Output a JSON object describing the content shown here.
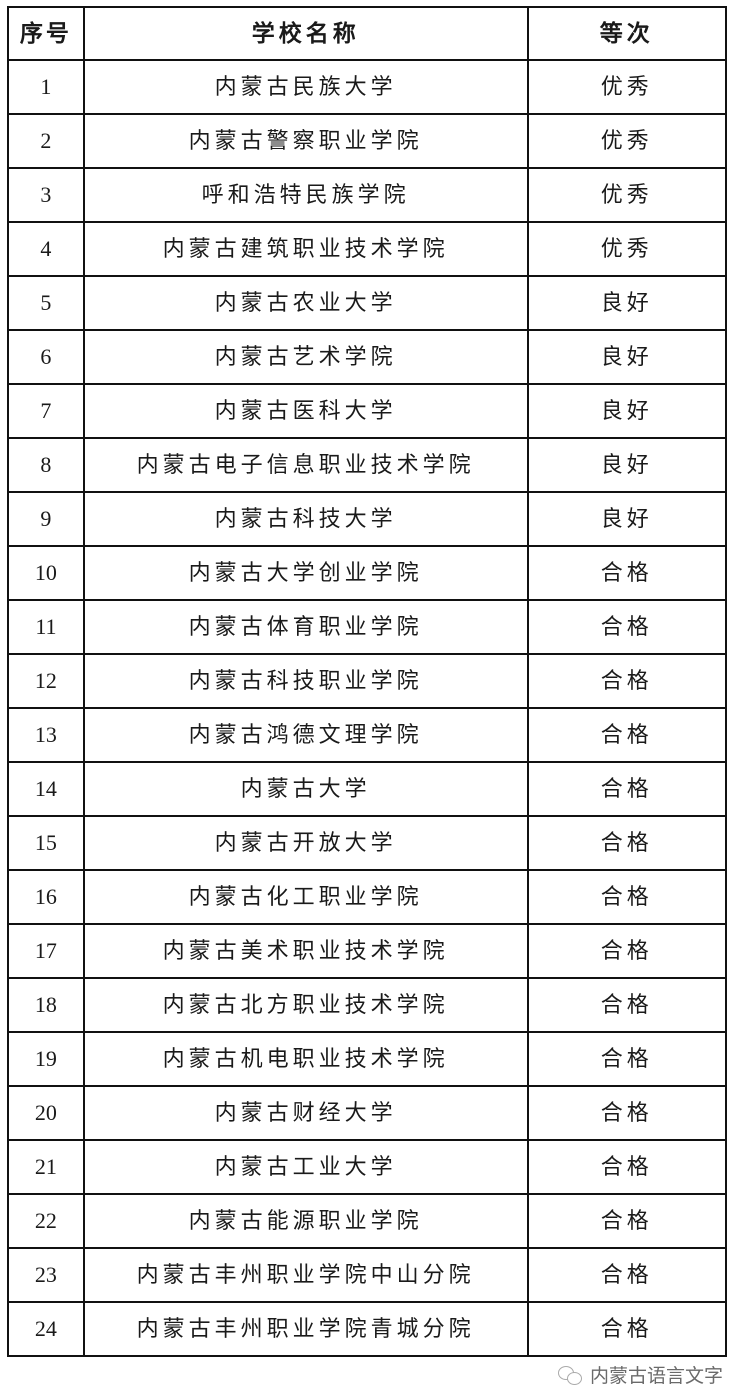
{
  "table": {
    "headers": [
      "序号",
      "学校名称",
      "等次"
    ],
    "rows": [
      [
        "1",
        "内蒙古民族大学",
        "优秀"
      ],
      [
        "2",
        "内蒙古警察职业学院",
        "优秀"
      ],
      [
        "3",
        "呼和浩特民族学院",
        "优秀"
      ],
      [
        "4",
        "内蒙古建筑职业技术学院",
        "优秀"
      ],
      [
        "5",
        "内蒙古农业大学",
        "良好"
      ],
      [
        "6",
        "内蒙古艺术学院",
        "良好"
      ],
      [
        "7",
        "内蒙古医科大学",
        "良好"
      ],
      [
        "8",
        "内蒙古电子信息职业技术学院",
        "良好"
      ],
      [
        "9",
        "内蒙古科技大学",
        "良好"
      ],
      [
        "10",
        "内蒙古大学创业学院",
        "合格"
      ],
      [
        "11",
        "内蒙古体育职业学院",
        "合格"
      ],
      [
        "12",
        "内蒙古科技职业学院",
        "合格"
      ],
      [
        "13",
        "内蒙古鸿德文理学院",
        "合格"
      ],
      [
        "14",
        "内蒙古大学",
        "合格"
      ],
      [
        "15",
        "内蒙古开放大学",
        "合格"
      ],
      [
        "16",
        "内蒙古化工职业学院",
        "合格"
      ],
      [
        "17",
        "内蒙古美术职业技术学院",
        "合格"
      ],
      [
        "18",
        "内蒙古北方职业技术学院",
        "合格"
      ],
      [
        "19",
        "内蒙古机电职业技术学院",
        "合格"
      ],
      [
        "20",
        "内蒙古财经大学",
        "合格"
      ],
      [
        "21",
        "内蒙古工业大学",
        "合格"
      ],
      [
        "22",
        "内蒙古能源职业学院",
        "合格"
      ],
      [
        "23",
        "内蒙古丰州职业学院中山分院",
        "合格"
      ],
      [
        "24",
        "内蒙古丰州职业学院青城分院",
        "合格"
      ]
    ]
  },
  "watermark": {
    "icon": "wechat-icon",
    "text": "内蒙古语言文字"
  }
}
